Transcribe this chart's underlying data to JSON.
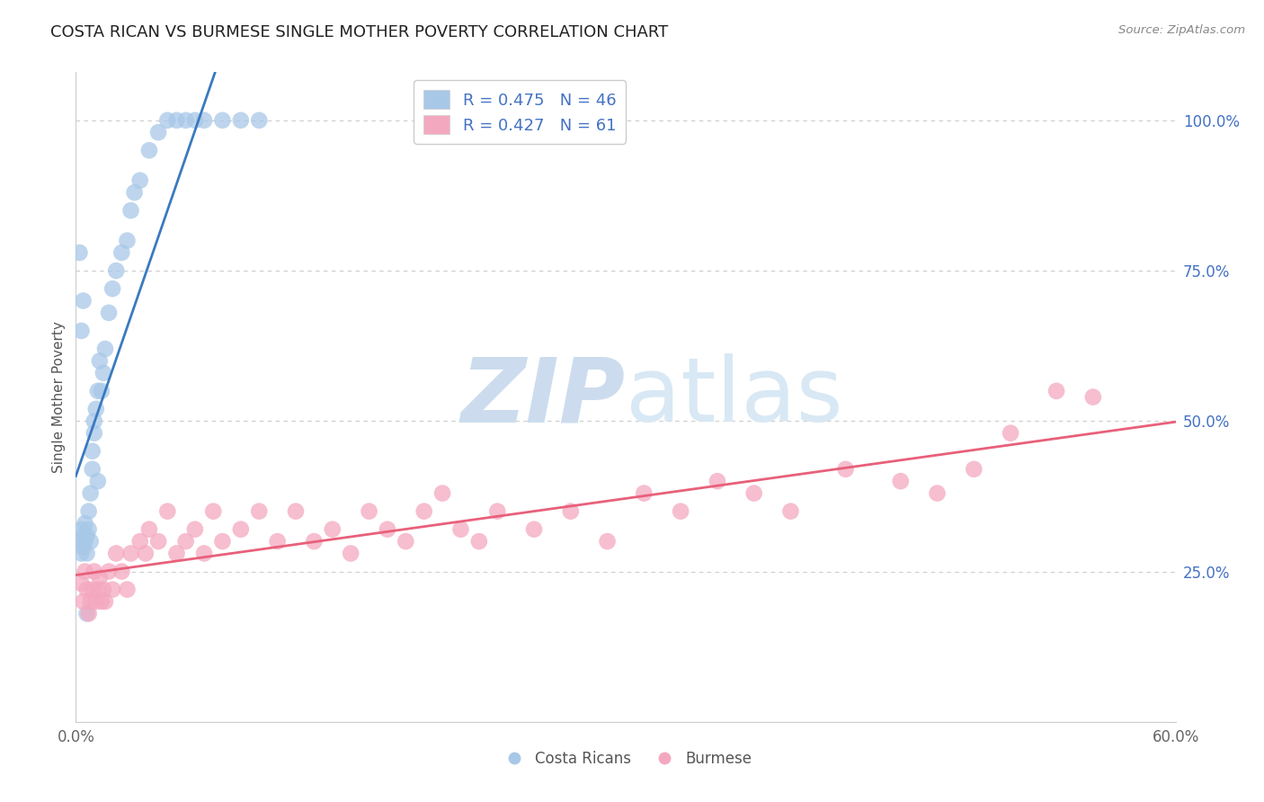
{
  "title": "COSTA RICAN VS BURMESE SINGLE MOTHER POVERTY CORRELATION CHART",
  "source": "Source: ZipAtlas.com",
  "ylabel": "Single Mother Poverty",
  "xlim": [
    0.0,
    0.6
  ],
  "ylim": [
    0.0,
    1.08
  ],
  "xtick_positions": [
    0.0,
    0.1,
    0.2,
    0.3,
    0.4,
    0.5,
    0.6
  ],
  "xticklabels": [
    "0.0%",
    "",
    "",
    "",
    "",
    "",
    "60.0%"
  ],
  "yticks_right": [
    0.25,
    0.5,
    0.75,
    1.0
  ],
  "yticklabels_right": [
    "25.0%",
    "50.0%",
    "75.0%",
    "100.0%"
  ],
  "costa_rican_color": "#a8c8e8",
  "burmese_color": "#f4a8c0",
  "costa_rican_line_color": "#3a7abf",
  "burmese_line_color": "#e8607a",
  "R_cr": 0.475,
  "N_cr": 46,
  "R_bm": 0.427,
  "N_bm": 61,
  "watermark_zip": "ZIP",
  "watermark_atlas": "atlas",
  "watermark_color": "#ccdcee",
  "title_fontsize": 13,
  "tick_fontsize": 12,
  "cr_x": [
    0.003,
    0.003,
    0.003,
    0.004,
    0.004,
    0.005,
    0.005,
    0.006,
    0.006,
    0.007,
    0.007,
    0.008,
    0.008,
    0.009,
    0.009,
    0.01,
    0.01,
    0.011,
    0.012,
    0.012,
    0.013,
    0.014,
    0.015,
    0.016,
    0.018,
    0.02,
    0.022,
    0.025,
    0.028,
    0.03,
    0.032,
    0.035,
    0.04,
    0.045,
    0.05,
    0.055,
    0.06,
    0.065,
    0.07,
    0.08,
    0.09,
    0.1,
    0.002,
    0.003,
    0.004,
    0.006
  ],
  "cr_y": [
    0.3,
    0.32,
    0.28,
    0.31,
    0.29,
    0.33,
    0.3,
    0.31,
    0.28,
    0.32,
    0.35,
    0.3,
    0.38,
    0.42,
    0.45,
    0.48,
    0.5,
    0.52,
    0.55,
    0.4,
    0.6,
    0.55,
    0.58,
    0.62,
    0.68,
    0.72,
    0.75,
    0.78,
    0.8,
    0.85,
    0.88,
    0.9,
    0.95,
    0.98,
    1.0,
    1.0,
    1.0,
    1.0,
    1.0,
    1.0,
    1.0,
    1.0,
    0.78,
    0.65,
    0.7,
    0.18
  ],
  "bm_x": [
    0.003,
    0.004,
    0.005,
    0.006,
    0.007,
    0.008,
    0.009,
    0.01,
    0.011,
    0.012,
    0.013,
    0.014,
    0.015,
    0.016,
    0.018,
    0.02,
    0.022,
    0.025,
    0.028,
    0.03,
    0.035,
    0.038,
    0.04,
    0.045,
    0.05,
    0.055,
    0.06,
    0.065,
    0.07,
    0.075,
    0.08,
    0.09,
    0.1,
    0.11,
    0.12,
    0.13,
    0.14,
    0.15,
    0.16,
    0.17,
    0.18,
    0.19,
    0.2,
    0.21,
    0.22,
    0.23,
    0.25,
    0.27,
    0.29,
    0.31,
    0.33,
    0.35,
    0.37,
    0.39,
    0.42,
    0.45,
    0.47,
    0.49,
    0.51,
    0.535,
    0.555
  ],
  "bm_y": [
    0.23,
    0.2,
    0.25,
    0.22,
    0.18,
    0.2,
    0.22,
    0.25,
    0.2,
    0.22,
    0.24,
    0.2,
    0.22,
    0.2,
    0.25,
    0.22,
    0.28,
    0.25,
    0.22,
    0.28,
    0.3,
    0.28,
    0.32,
    0.3,
    0.35,
    0.28,
    0.3,
    0.32,
    0.28,
    0.35,
    0.3,
    0.32,
    0.35,
    0.3,
    0.35,
    0.3,
    0.32,
    0.28,
    0.35,
    0.32,
    0.3,
    0.35,
    0.38,
    0.32,
    0.3,
    0.35,
    0.32,
    0.35,
    0.3,
    0.38,
    0.35,
    0.4,
    0.38,
    0.35,
    0.42,
    0.4,
    0.38,
    0.42,
    0.48,
    0.55,
    0.54
  ]
}
